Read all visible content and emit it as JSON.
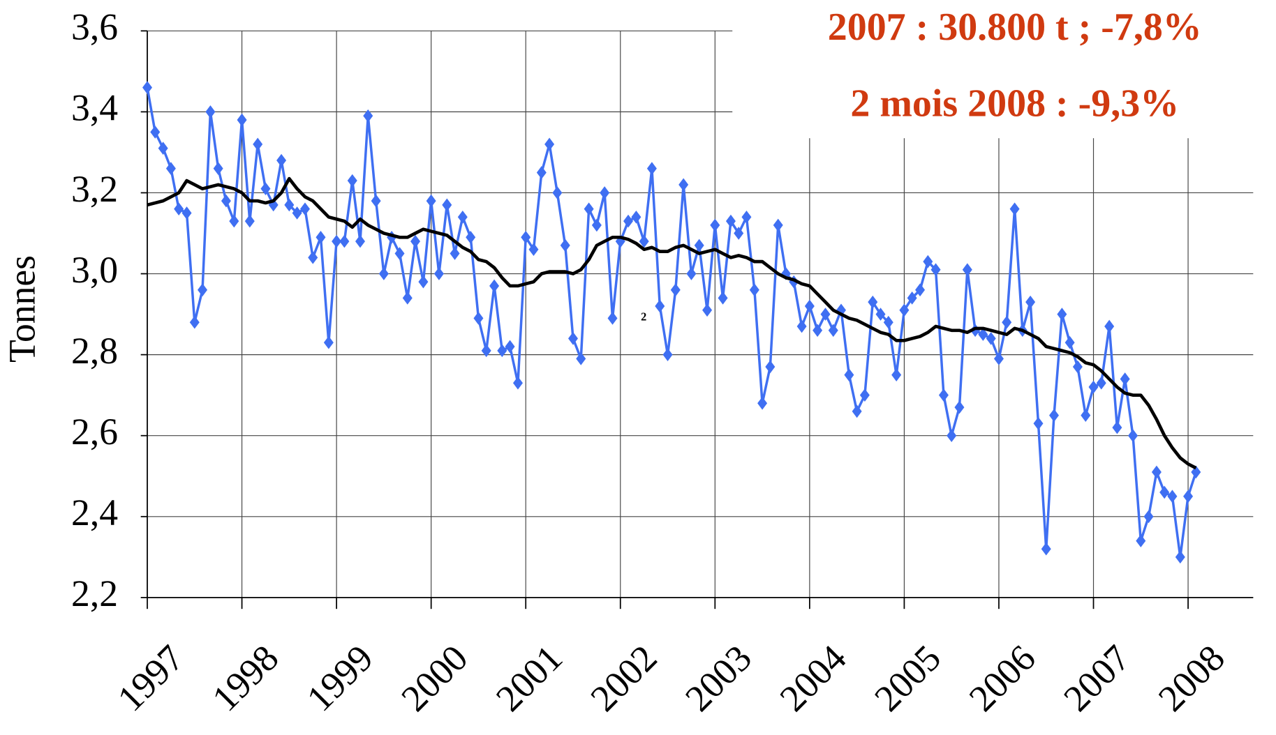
{
  "chart_data": {
    "type": "line",
    "ylabel": "Tonnes",
    "annotations": [
      "2007 : 30.800 t ; -7,8%",
      "2 mois 2008 : -9,3%",
      "2"
    ],
    "annotation_color": "#d03a10",
    "x": [
      1997,
      1997.083,
      1997.167,
      1997.25,
      1997.333,
      1997.417,
      1997.5,
      1997.583,
      1997.667,
      1997.75,
      1997.833,
      1997.917,
      1998,
      1998.083,
      1998.167,
      1998.25,
      1998.333,
      1998.417,
      1998.5,
      1998.583,
      1998.667,
      1998.75,
      1998.833,
      1998.917,
      1999,
      1999.083,
      1999.167,
      1999.25,
      1999.333,
      1999.417,
      1999.5,
      1999.583,
      1999.667,
      1999.75,
      1999.833,
      1999.917,
      2000,
      2000.083,
      2000.167,
      2000.25,
      2000.333,
      2000.417,
      2000.5,
      2000.583,
      2000.667,
      2000.75,
      2000.833,
      2000.917,
      2001,
      2001.083,
      2001.167,
      2001.25,
      2001.333,
      2001.417,
      2001.5,
      2001.583,
      2001.667,
      2001.75,
      2001.833,
      2001.917,
      2002,
      2002.083,
      2002.167,
      2002.25,
      2002.333,
      2002.417,
      2002.5,
      2002.583,
      2002.667,
      2002.75,
      2002.833,
      2002.917,
      2003,
      2003.083,
      2003.167,
      2003.25,
      2003.333,
      2003.417,
      2003.5,
      2003.583,
      2003.667,
      2003.75,
      2003.833,
      2003.917,
      2004,
      2004.083,
      2004.167,
      2004.25,
      2004.333,
      2004.417,
      2004.5,
      2004.583,
      2004.667,
      2004.75,
      2004.833,
      2004.917,
      2005,
      2005.083,
      2005.167,
      2005.25,
      2005.333,
      2005.417,
      2005.5,
      2005.583,
      2005.667,
      2005.75,
      2005.833,
      2005.917,
      2006,
      2006.083,
      2006.167,
      2006.25,
      2006.333,
      2006.417,
      2006.5,
      2006.583,
      2006.667,
      2006.75,
      2006.833,
      2006.917,
      2007,
      2007.083,
      2007.167,
      2007.25,
      2007.333,
      2007.417,
      2007.5,
      2007.583,
      2007.667,
      2007.75,
      2007.833,
      2007.917,
      2008,
      2008.083
    ],
    "series": [
      {
        "color": "#3f6ff2",
        "marker": "diamond",
        "values": [
          3.46,
          3.35,
          3.31,
          3.26,
          3.16,
          3.15,
          2.88,
          2.96,
          3.4,
          3.26,
          3.18,
          3.13,
          3.38,
          3.13,
          3.32,
          3.21,
          3.17,
          3.28,
          3.17,
          3.15,
          3.16,
          3.04,
          3.09,
          2.83,
          3.08,
          3.08,
          3.23,
          3.08,
          3.39,
          3.18,
          3.0,
          3.09,
          3.05,
          2.94,
          3.08,
          2.98,
          3.18,
          3.0,
          3.17,
          3.05,
          3.14,
          3.09,
          2.89,
          2.81,
          2.97,
          2.81,
          2.82,
          2.73,
          3.09,
          3.06,
          3.25,
          3.32,
          3.2,
          3.07,
          2.84,
          2.79,
          3.16,
          3.12,
          3.2,
          2.89,
          3.08,
          3.13,
          3.14,
          3.08,
          3.26,
          2.92,
          2.8,
          2.96,
          3.22,
          3.0,
          3.07,
          2.91,
          3.12,
          2.94,
          3.13,
          3.1,
          3.14,
          2.96,
          2.68,
          2.77,
          3.12,
          3.0,
          2.98,
          2.87,
          2.92,
          2.86,
          2.9,
          2.86,
          2.91,
          2.75,
          2.66,
          2.7,
          2.93,
          2.9,
          2.88,
          2.75,
          2.91,
          2.94,
          2.96,
          3.03,
          3.01,
          2.7,
          2.6,
          2.67,
          3.01,
          2.86,
          2.85,
          2.84,
          2.79,
          2.88,
          3.16,
          2.86,
          2.93,
          2.63,
          2.32,
          2.65,
          2.9,
          2.83,
          2.77,
          2.65,
          2.72,
          2.73,
          2.87,
          2.62,
          2.74,
          2.6,
          2.34,
          2.4,
          2.51,
          2.46,
          2.45,
          2.3,
          2.45,
          2.51
        ]
      },
      {
        "color": "#000000",
        "marker": "none",
        "values": [
          3.17,
          3.175,
          3.18,
          3.19,
          3.2,
          3.23,
          3.22,
          3.21,
          3.215,
          3.22,
          3.215,
          3.21,
          3.2,
          3.18,
          3.18,
          3.175,
          3.18,
          3.2,
          3.235,
          3.21,
          3.19,
          3.18,
          3.16,
          3.14,
          3.135,
          3.13,
          3.115,
          3.135,
          3.12,
          3.11,
          3.1,
          3.095,
          3.09,
          3.09,
          3.1,
          3.11,
          3.105,
          3.1,
          3.095,
          3.08,
          3.065,
          3.055,
          3.035,
          3.03,
          3.015,
          2.99,
          2.97,
          2.97,
          2.975,
          2.98,
          3.0,
          3.005,
          3.005,
          3.005,
          3.0,
          3.01,
          3.035,
          3.07,
          3.08,
          3.09,
          3.09,
          3.085,
          3.075,
          3.06,
          3.065,
          3.055,
          3.055,
          3.065,
          3.07,
          3.06,
          3.05,
          3.055,
          3.06,
          3.05,
          3.04,
          3.045,
          3.04,
          3.03,
          3.03,
          3.015,
          3.0,
          2.99,
          2.985,
          2.975,
          2.97,
          2.95,
          2.93,
          2.91,
          2.9,
          2.89,
          2.885,
          2.875,
          2.865,
          2.855,
          2.85,
          2.835,
          2.835,
          2.84,
          2.845,
          2.855,
          2.87,
          2.865,
          2.86,
          2.86,
          2.855,
          2.865,
          2.865,
          2.86,
          2.855,
          2.85,
          2.865,
          2.86,
          2.85,
          2.84,
          2.82,
          2.815,
          2.81,
          2.805,
          2.795,
          2.78,
          2.775,
          2.76,
          2.74,
          2.72,
          2.705,
          2.7,
          2.7,
          2.675,
          2.64,
          2.6,
          2.57,
          2.545,
          2.53,
          2.52
        ]
      }
    ],
    "xlim": [
      1997,
      2008
    ],
    "xticks": [
      1997,
      1998,
      1999,
      2000,
      2001,
      2002,
      2003,
      2004,
      2005,
      2006,
      2007,
      2008
    ],
    "ylim": [
      2.2,
      3.6
    ],
    "yticks": [
      {
        "value": 2.2,
        "label": "2,2"
      },
      {
        "value": 2.4,
        "label": "2,4"
      },
      {
        "value": 2.6,
        "label": "2,6"
      },
      {
        "value": 2.8,
        "label": "2,8"
      },
      {
        "value": 3.0,
        "label": "3,0"
      },
      {
        "value": 3.2,
        "label": "3,2"
      },
      {
        "value": 3.4,
        "label": "3,4"
      },
      {
        "value": 3.6,
        "label": "3,6"
      }
    ],
    "grid": true
  }
}
